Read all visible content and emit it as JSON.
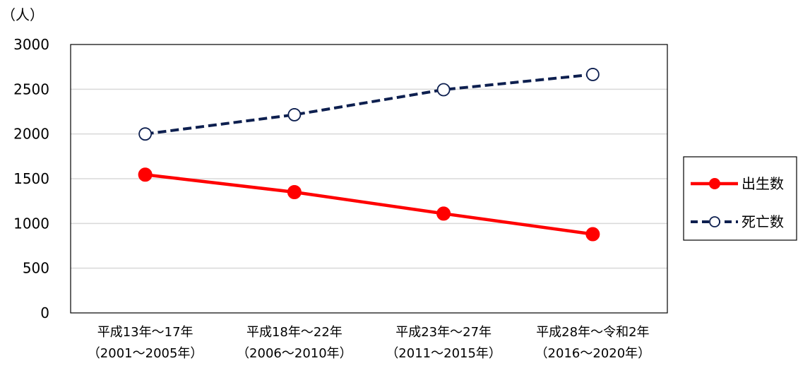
{
  "chart_data": {
    "type": "line",
    "unit_label": "（人）",
    "categories": [
      [
        "平成13年～17年",
        "（2001～2005年）"
      ],
      [
        "平成18年～22年",
        "（2006～2010年）"
      ],
      [
        "平成23年～27年",
        "（2011～2015年）"
      ],
      [
        "平成28年～令和2年",
        "（2016～2020年）"
      ]
    ],
    "ylim": [
      0,
      3000
    ],
    "yticks": [
      0,
      500,
      1000,
      1500,
      2000,
      2500,
      3000
    ],
    "grid": true,
    "legend_position": "right",
    "series": [
      {
        "name": "出生数",
        "values": [
          1545,
          1350,
          1110,
          880
        ],
        "color": "#ff0000",
        "style": "solid",
        "marker": "filled-circle"
      },
      {
        "name": "死亡数",
        "values": [
          2000,
          2215,
          2495,
          2665
        ],
        "color": "#0d1f4f",
        "style": "dashed",
        "marker": "open-circle"
      }
    ]
  }
}
